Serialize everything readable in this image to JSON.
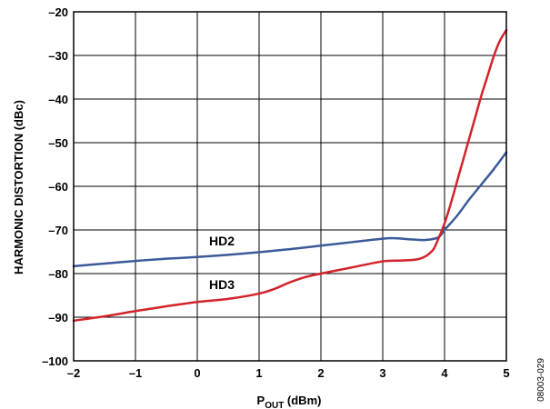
{
  "chart_data": {
    "type": "line",
    "xlabel_main": "P",
    "xlabel_sub": "OUT",
    "xlabel_unit": " (dBm)",
    "ylabel": "HARMONIC DISTORTION (dBc)",
    "xlim": [
      -2,
      5
    ],
    "ylim": [
      -100,
      -20
    ],
    "x_ticks": [
      -2,
      -1,
      0,
      1,
      2,
      3,
      4,
      5
    ],
    "x_tick_labels": [
      "–2",
      "–1",
      "0",
      "1",
      "2",
      "3",
      "4",
      "5"
    ],
    "y_ticks": [
      -100,
      -90,
      -80,
      -70,
      -60,
      -50,
      -40,
      -30,
      -20
    ],
    "y_tick_labels": [
      "–100",
      "–90",
      "–80",
      "–70",
      "–60",
      "–50",
      "–40",
      "–30",
      "–20"
    ],
    "grid": true,
    "series": [
      {
        "name": "HD2",
        "color": "#3b5a9a",
        "x": [
          -2,
          -1.5,
          -1,
          -0.5,
          0,
          0.5,
          1,
          1.5,
          2,
          2.5,
          3,
          3.2,
          3.5,
          3.7,
          3.9,
          4.0,
          4.2,
          4.4,
          4.6,
          4.8,
          5.0
        ],
        "y": [
          -78.3,
          -77.7,
          -77.1,
          -76.6,
          -76.2,
          -75.7,
          -75.1,
          -74.4,
          -73.6,
          -72.8,
          -72.0,
          -71.9,
          -72.2,
          -72.3,
          -71.7,
          -70.0,
          -66.8,
          -63.0,
          -59.5,
          -56.0,
          -52.2
        ]
      },
      {
        "name": "HD3",
        "color": "#d2232a",
        "x": [
          -2,
          -1.5,
          -1,
          -0.5,
          0,
          0.5,
          1,
          1.25,
          1.5,
          1.75,
          2,
          2.5,
          3,
          3.3,
          3.6,
          3.8,
          3.9,
          4.0,
          4.1,
          4.2,
          4.3,
          4.4,
          4.5,
          4.6,
          4.7,
          4.8,
          4.9,
          5.0
        ],
        "y": [
          -90.8,
          -89.8,
          -88.6,
          -87.5,
          -86.5,
          -85.8,
          -84.6,
          -83.5,
          -82.0,
          -80.8,
          -80.0,
          -78.6,
          -77.2,
          -77.0,
          -76.6,
          -74.8,
          -72.0,
          -68.5,
          -64.0,
          -59.0,
          -54.0,
          -49.0,
          -44.0,
          -39.0,
          -34.5,
          -30.0,
          -26.5,
          -24.2
        ]
      }
    ]
  },
  "labels": {
    "hd2": "HD2",
    "hd3": "HD3",
    "figure_id": "08003-029"
  }
}
